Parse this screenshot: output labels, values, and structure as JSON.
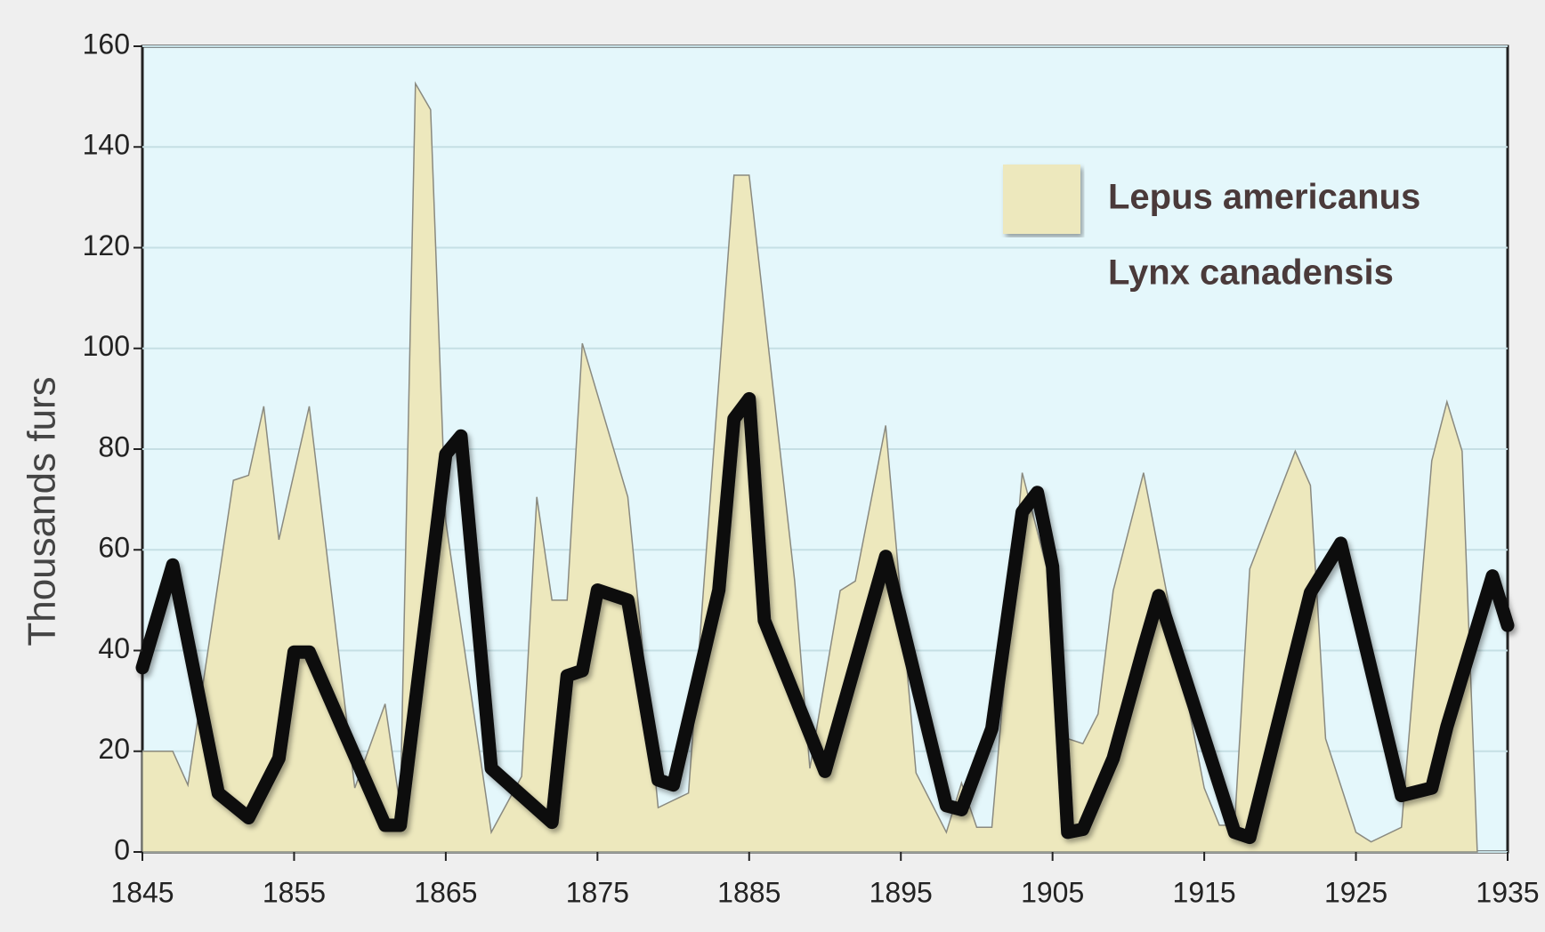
{
  "chart_data": {
    "type": "combo",
    "ylabel": "Thousands furs",
    "xlim": [
      1845,
      1935
    ],
    "ylim": [
      0,
      160
    ],
    "xticks": [
      1845,
      1855,
      1865,
      1875,
      1885,
      1895,
      1905,
      1915,
      1925,
      1935
    ],
    "yticks": [
      0,
      20,
      40,
      60,
      80,
      100,
      120,
      140,
      160
    ],
    "grid": true,
    "legend": "upper right",
    "series": [
      {
        "name": "Lepus americanus",
        "type": "area",
        "color": "#ede8bd",
        "x": [
          1845,
          1847,
          1848,
          1851,
          1852,
          1853,
          1854,
          1856,
          1859,
          1861,
          1862,
          1863,
          1864,
          1865,
          1868,
          1870,
          1871,
          1872,
          1873,
          1874,
          1877,
          1879,
          1881,
          1884,
          1885,
          1888,
          1889,
          1891,
          1892,
          1894,
          1896,
          1898,
          1899,
          1900,
          1901,
          1903,
          1905,
          1906,
          1907,
          1908,
          1909,
          1911,
          1915,
          1916,
          1917,
          1918,
          1921,
          1922,
          1923,
          1925,
          1926,
          1928,
          1930,
          1931,
          1932,
          1933
        ],
        "values": [
          20,
          20,
          13.3,
          73.8,
          74.8,
          88.5,
          62,
          88.5,
          12.7,
          29.4,
          8.8,
          152.6,
          147.4,
          65.6,
          3.9,
          15,
          70.5,
          50,
          50,
          101,
          70.5,
          8.8,
          11.7,
          134.4,
          134.4,
          53.8,
          16.6,
          51.9,
          53.8,
          84.7,
          15.7,
          3.9,
          13.7,
          4.9,
          4.9,
          75.3,
          51.9,
          22.5,
          21.5,
          27.4,
          51.9,
          75.3,
          12.7,
          5.3,
          5.3,
          56.2,
          79.6,
          72.8,
          22.5,
          3.9,
          2,
          4.9,
          77.7,
          89.4,
          79.6,
          0
        ]
      },
      {
        "name": "Lynx canadensis",
        "type": "line",
        "color": "#111111",
        "x": [
          1845,
          1847,
          1850,
          1852,
          1854,
          1855,
          1856,
          1861,
          1862,
          1865,
          1866,
          1868,
          1872,
          1873,
          1874,
          1875,
          1877,
          1879,
          1880,
          1883,
          1884,
          1885,
          1886,
          1890,
          1894,
          1898,
          1899,
          1901,
          1903,
          1904,
          1905,
          1906,
          1907,
          1909,
          1911,
          1912,
          1917,
          1918,
          1922,
          1924,
          1928,
          1930,
          1931,
          1934,
          1935
        ],
        "values": [
          36.6,
          57,
          11.7,
          6.8,
          18.6,
          39.7,
          39.7,
          5.3,
          5.3,
          79,
          82.6,
          16.6,
          5.9,
          35,
          36,
          52,
          50,
          14.3,
          13.3,
          52,
          86,
          90,
          46,
          16,
          58.7,
          9.2,
          8.4,
          24.5,
          67.5,
          71.4,
          56.7,
          3.9,
          4.5,
          18.6,
          40.5,
          50.9,
          3.9,
          2.9,
          51.5,
          61.3,
          11.2,
          12.7,
          24.9,
          54.8,
          45
        ]
      }
    ]
  }
}
